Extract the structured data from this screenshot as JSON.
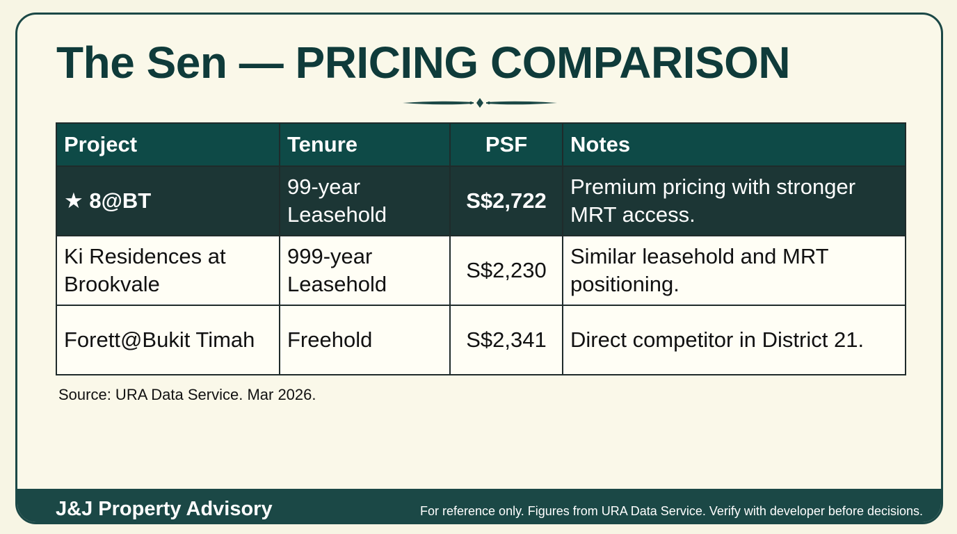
{
  "header": {
    "title": "The Sen — PRICING COMPARISON"
  },
  "table": {
    "columns": [
      "Project",
      "Tenure",
      "PSF",
      "Notes"
    ],
    "rows": [
      [
        "★ 8@BT",
        "99-year Leasehold",
        "S$2,722",
        "Premium pricing with stronger MRT access."
      ],
      [
        "Ki Residences at Brookvale",
        "999-year Leasehold",
        "S$2,230",
        "Similar leasehold and MRT positioning."
      ],
      [
        "Forett@Bukit Timah",
        "Freehold",
        "S$2,341",
        "Direct competitor in District 21."
      ]
    ]
  },
  "source": "Source: URA Data Service. Mar 2026.",
  "footer": {
    "brand": "J&J Property Advisory",
    "disclaimer": "For reference only. Figures from URA Data Service. Verify with developer before decisions."
  }
}
